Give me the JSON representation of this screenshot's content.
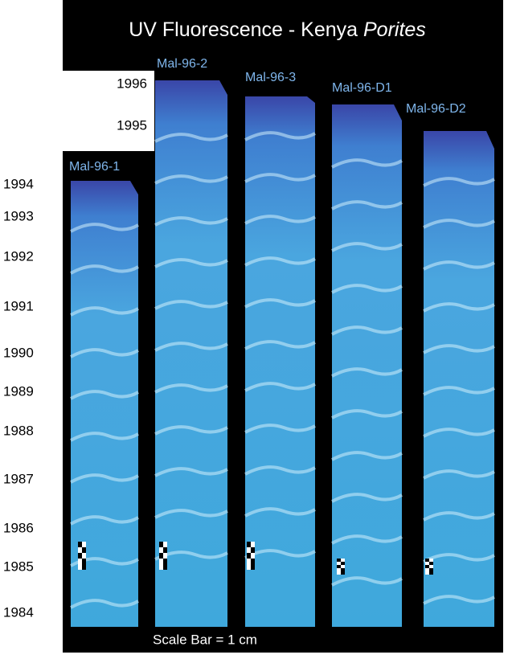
{
  "title": {
    "text": "UV Fluorescence  - Kenya ",
    "italic": "Porites"
  },
  "cores": [
    "Mal-96-1",
    "Mal-96-2",
    "Mal-96-3",
    "Mal-96-D1",
    "Mal-96-D2"
  ],
  "years_left": [
    "1994",
    "1993",
    "1992",
    "1991",
    "1990",
    "1989",
    "1988",
    "1987",
    "1986",
    "1985",
    "1984"
  ],
  "years_top": [
    "1996",
    "1995"
  ],
  "scale_note": "Scale Bar = 1 cm"
}
